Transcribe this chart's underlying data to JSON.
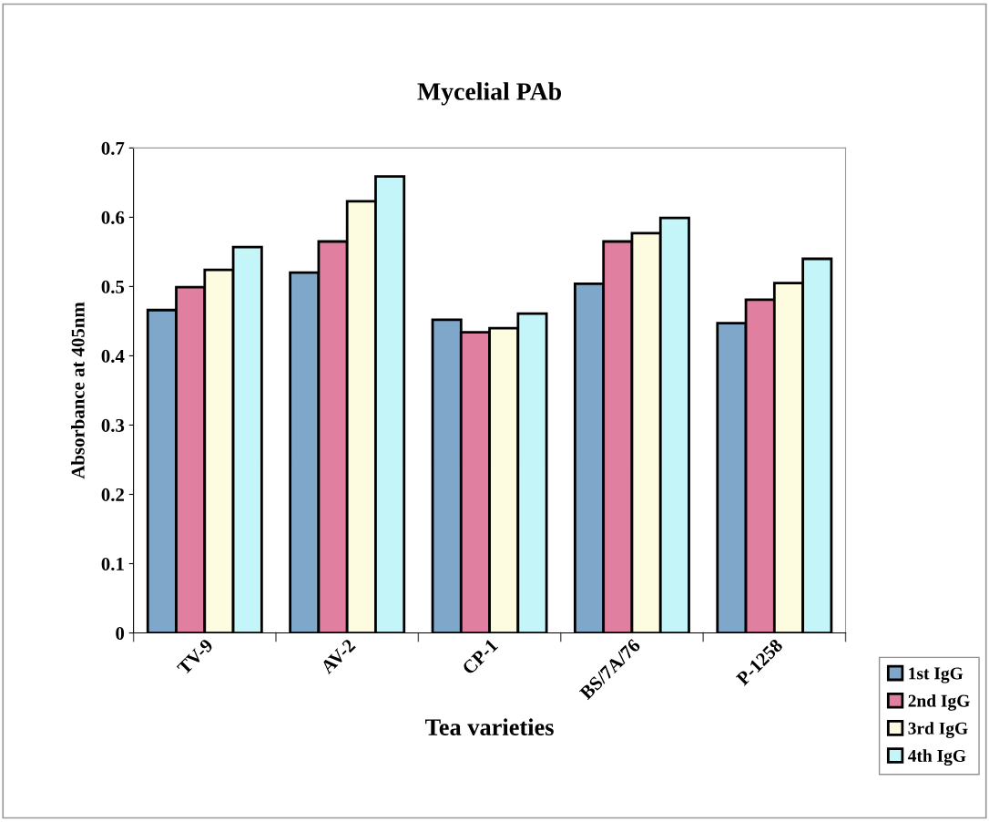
{
  "chart_data": {
    "type": "bar",
    "title": "Mycelial PAb",
    "xlabel": "Tea varieties",
    "ylabel": "Absorbance at 405nm",
    "categories": [
      "TV-9",
      "AV-2",
      "CP-1",
      "BS/7A/76",
      "P-1258"
    ],
    "series": [
      {
        "name": "1st IgG",
        "color": "#7fa7c9",
        "values": [
          0.466,
          0.52,
          0.452,
          0.504,
          0.447
        ]
      },
      {
        "name": "2nd IgG",
        "color": "#e07fa0",
        "values": [
          0.499,
          0.565,
          0.434,
          0.565,
          0.481
        ]
      },
      {
        "name": "3rd IgG",
        "color": "#fdfbe0",
        "values": [
          0.524,
          0.623,
          0.44,
          0.577,
          0.505
        ]
      },
      {
        "name": "4th IgG",
        "color": "#c4f5f8",
        "values": [
          0.557,
          0.659,
          0.461,
          0.599,
          0.54
        ]
      }
    ],
    "ylim": [
      0,
      0.7
    ],
    "yticks": [
      0,
      0.1,
      0.2,
      0.3,
      0.4,
      0.5,
      0.6,
      0.7
    ],
    "grid": false,
    "legend": "bottom right"
  }
}
